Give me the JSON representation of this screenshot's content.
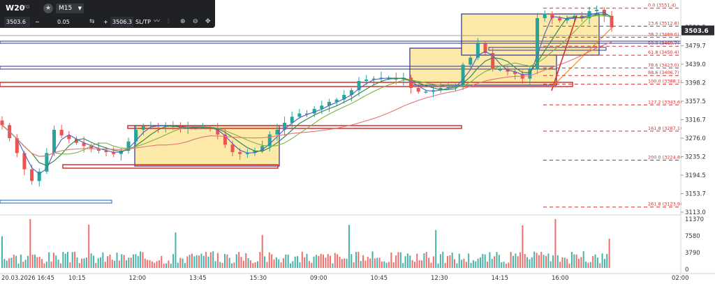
{
  "toolbar": {
    "symbol": "W20",
    "symbol_tag": "CFD",
    "star_icon": "star-icon",
    "timeframe": "M15",
    "sell_price": "3503.6",
    "minus": "−",
    "lot": "0.05",
    "plus": "+",
    "buy_price": "3506.3",
    "sltp": "SL/TP"
  },
  "colors": {
    "bull": "#26a69a",
    "bear": "#ef5350",
    "ma_fast": "#5565c8",
    "ma_mid": "#2e8b57",
    "ma_slow": "#7cb342",
    "ma_long": "#e57373",
    "fib": "#d32f2f",
    "zone_fill": "#fde9a8",
    "zone_border": "#2e3192",
    "price_tag": "#2b2d31"
  },
  "chart_data": {
    "type": "candlestick",
    "symbol": "W20",
    "timeframe": "M15",
    "current_price": 3503.6,
    "ylim": [
      3113.0,
      3560.0
    ],
    "price_ticks": [
      "3520.5",
      "3479.7",
      "3439.0",
      "3398.2",
      "3357.5",
      "3316.7",
      "3276.0",
      "3235.2",
      "3194.5",
      "3153.7",
      "3113.0"
    ],
    "time_ticks": [
      "20.03.2026 16:45",
      "10:15",
      "12:00",
      "13:45",
      "15:30",
      "09:00",
      "10:45",
      "12:30",
      "14:15",
      "16:00",
      "02:00"
    ],
    "volume_ticks": [
      "11370",
      "7580",
      "3790",
      "0"
    ],
    "fibonacci": [
      {
        "label": "0.0 (3551.4)",
        "level": 3551.4
      },
      {
        "label": "23.6 (3512.8)",
        "level": 3512.8
      },
      {
        "label": "38.2 (3489.0)",
        "level": 3489.0
      },
      {
        "label": "50.0 (3469.7)",
        "level": 3469.7
      },
      {
        "label": "61.8 (3450.4)",
        "level": 3450.4
      },
      {
        "label": "78.6 (3423.0)",
        "level": 3423.0
      },
      {
        "label": "88.6 (3406.7)",
        "level": 3406.7
      },
      {
        "label": "100.0 (3388.1)",
        "level": 3388.1
      },
      {
        "label": "127.2 (3343.6)",
        "level": 3343.6
      },
      {
        "label": "161.8 (3287.1)",
        "level": 3287.1
      },
      {
        "label": "200.0 (3224.8)",
        "level": 3224.8
      },
      {
        "label": "261.8 (3123.9)",
        "level": 3123.9
      }
    ],
    "series": [
      {
        "name": "close",
        "values": [
          3300,
          3272,
          3240,
          3205,
          3180,
          3200,
          3240,
          3290,
          3278,
          3270,
          3262,
          3255,
          3250,
          3245,
          3242,
          3238,
          3245,
          3265,
          3290,
          3298,
          3300,
          3297,
          3300,
          3296,
          3292,
          3296,
          3296,
          3296,
          3294,
          3280,
          3258,
          3242,
          3238,
          3240,
          3245,
          3255,
          3280,
          3290,
          3305,
          3318,
          3325,
          3325,
          3335,
          3342,
          3350,
          3355,
          3365,
          3375,
          3395,
          3398,
          3400,
          3402,
          3402,
          3398,
          3402,
          3380,
          3372,
          3372,
          3375,
          3380,
          3382,
          3383,
          3430,
          3445,
          3475,
          3455,
          3420,
          3420,
          3415,
          3410,
          3400,
          3420,
          3530,
          3540,
          3530,
          3525,
          3530,
          3535,
          3530,
          3545,
          3548,
          3535,
          3510
        ]
      }
    ]
  }
}
